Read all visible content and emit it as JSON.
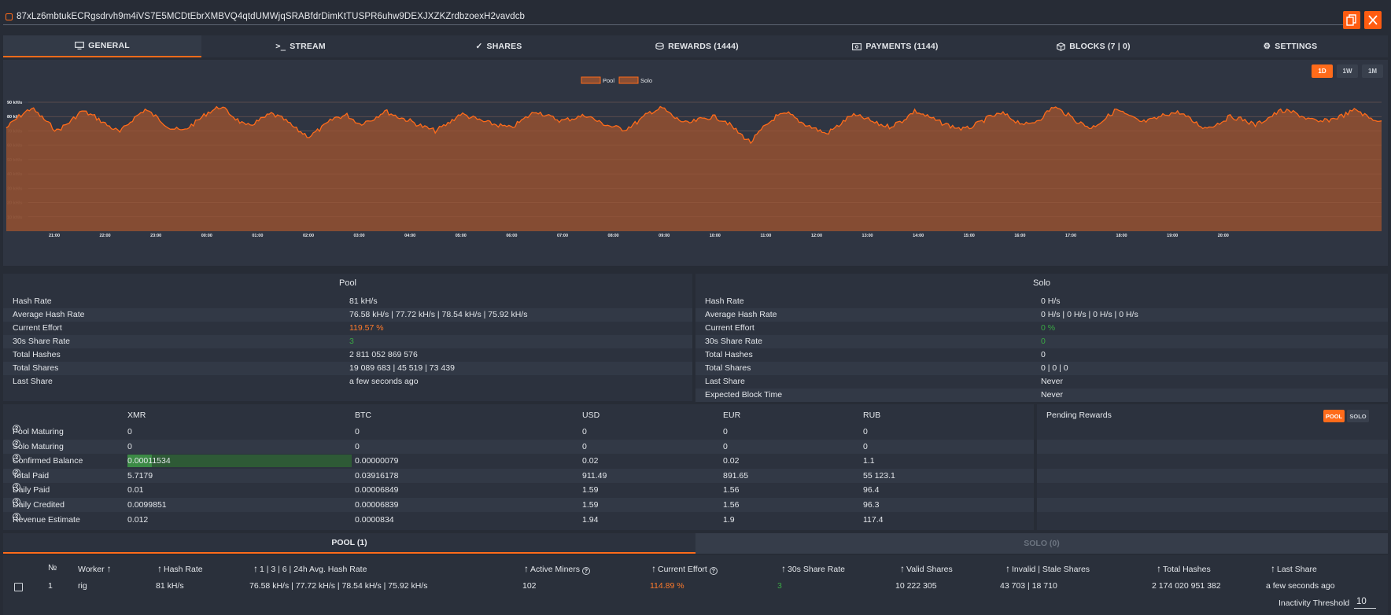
{
  "address": "87xLz6mbtukECRgsdrvh9m4iVS7E5MCDtEbrXMBVQ4qtdUMWjqSRABfdrDimKtTUSPR6uhw9DEXJXZKZrdbzoexH2vavdcb",
  "tabs": {
    "general": "GENERAL",
    "stream": "STREAM",
    "shares": "SHARES",
    "rewards": "REWARDS (1444)",
    "payments": "PAYMENTS (1144)",
    "blocks": "BLOCKS (7 | 0)",
    "settings": "SETTINGS"
  },
  "range_buttons": {
    "d1": "1D",
    "w1": "1W",
    "m1": "1M",
    "active": "1D"
  },
  "colors": {
    "accent": "#ff6b1a",
    "green": "#3aa845",
    "background": "#272c36"
  },
  "chart_data": {
    "type": "area",
    "legend": [
      "Pool",
      "Solo"
    ],
    "legend_position": "top-center",
    "x_tick_labels": [
      "21:00",
      "22:00",
      "23:00",
      "00:00",
      "01:00",
      "02:00",
      "03:00",
      "04:00",
      "05:00",
      "06:00",
      "07:00",
      "08:00",
      "09:00",
      "10:00",
      "11:00",
      "12:00",
      "13:00",
      "14:00",
      "15:00",
      "16:00",
      "17:00",
      "18:00",
      "19:00",
      "20:00"
    ],
    "y_tick_labels": [
      "10 kH/s",
      "20 kH/s",
      "30 kH/s",
      "40 kH/s",
      "50 kH/s",
      "60 kH/s",
      "70 kH/s",
      "80 kH/s",
      "90 kH/s"
    ],
    "ylim": [
      0,
      90
    ],
    "series": [
      {
        "name": "Pool",
        "values": [
          72,
          80,
          86,
          78,
          70,
          76,
          84,
          80,
          74,
          69,
          78,
          85,
          79,
          72,
          70,
          76,
          83,
          87,
          80,
          73,
          77,
          82,
          78,
          71,
          66,
          72,
          79,
          81,
          75,
          78,
          84,
          80,
          77,
          73,
          70,
          75,
          82,
          79,
          76,
          74,
          72,
          78,
          84,
          80,
          77,
          79,
          81,
          76,
          73,
          71,
          76,
          83,
          86,
          79,
          75,
          78,
          80,
          77,
          69,
          62,
          72,
          80,
          82,
          76,
          72,
          68,
          74,
          81,
          79,
          75,
          73,
          77,
          84,
          80,
          76,
          73,
          71,
          75,
          80,
          82,
          77,
          74,
          79,
          87,
          82,
          76,
          72,
          78,
          85,
          80,
          76,
          78,
          82,
          83,
          77,
          72,
          75,
          80,
          78,
          74,
          79,
          84,
          83,
          79,
          76,
          78,
          81,
          85,
          79,
          77
        ]
      },
      {
        "name": "Solo",
        "values": [
          0,
          0,
          0,
          0,
          0,
          0,
          0,
          0,
          0,
          0
        ]
      }
    ],
    "grid": true
  },
  "pool_stats": {
    "title": "Pool",
    "rows": [
      {
        "label": "Hash Rate",
        "value": "81 kH/s"
      },
      {
        "label": "Average Hash Rate",
        "value": "76.58 kH/s | 77.72 kH/s | 78.54 kH/s | 75.92 kH/s"
      },
      {
        "label": "Current Effort",
        "value": "119.57 %"
      },
      {
        "label": "30s Share Rate",
        "value": "3"
      },
      {
        "label": "Total Hashes",
        "value": "2 811 052 869 576"
      },
      {
        "label": "Total Shares",
        "value": "19 089 683 | 45 519 | 73 439"
      },
      {
        "label": "Last Share",
        "value": "a few seconds ago"
      }
    ]
  },
  "solo_stats": {
    "title": "Solo",
    "rows": [
      {
        "label": "Hash Rate",
        "value": "0 H/s"
      },
      {
        "label": "Average Hash Rate",
        "value": "0 H/s | 0 H/s | 0 H/s | 0 H/s"
      },
      {
        "label": "Current Effort",
        "value": "0 %"
      },
      {
        "label": "30s Share Rate",
        "value": "0"
      },
      {
        "label": "Total Hashes",
        "value": "0"
      },
      {
        "label": "Total Shares",
        "value": "0 | 0 | 0"
      },
      {
        "label": "Last Share",
        "value": "Never"
      },
      {
        "label": "Expected Block Time",
        "value": "Never"
      }
    ]
  },
  "rewards": {
    "columns": [
      "XMR",
      "BTC",
      "USD",
      "EUR",
      "RUB"
    ],
    "rows": [
      {
        "label": "Pool Maturing",
        "values": [
          "0",
          "0",
          "0",
          "0",
          "0"
        ]
      },
      {
        "label": "Solo Maturing",
        "values": [
          "0",
          "0",
          "0",
          "0",
          "0"
        ]
      },
      {
        "label": "Confirmed Balance",
        "values": [
          "0.00011534",
          "0.00000079",
          "0.02",
          "0.02",
          "1.1"
        ],
        "progress": 0.22
      },
      {
        "label": "Total Paid",
        "values": [
          "5.7179",
          "0.03916178",
          "911.49",
          "891.65",
          "55 123.1"
        ]
      },
      {
        "label": "Daily Paid",
        "values": [
          "0.01",
          "0.00006849",
          "1.59",
          "1.56",
          "96.4"
        ]
      },
      {
        "label": "Daily Credited",
        "values": [
          "0.0099851",
          "0.00006839",
          "1.59",
          "1.56",
          "96.3"
        ]
      },
      {
        "label": "Revenue Estimate",
        "values": [
          "0.012",
          "0.0000834",
          "1.94",
          "1.9",
          "117.4"
        ]
      }
    ]
  },
  "pending": {
    "title": "Pending Rewards",
    "pool": "POOL",
    "solo": "SOLO"
  },
  "worker_tabs": {
    "pool": "POOL (1)",
    "solo": "SOLO (0)"
  },
  "workers": {
    "headers": {
      "num": "№",
      "worker": "Worker",
      "hashrate": "Hash Rate",
      "avg": "1 | 3 | 6 | 24h Avg. Hash Rate",
      "miners": "Active Miners",
      "effort": "Current Effort",
      "share_rate": "30s Share Rate",
      "valid": "Valid Shares",
      "invalid": "Invalid | Stale Shares",
      "total": "Total Hashes",
      "last": "Last Share"
    },
    "rows": [
      {
        "num": "1",
        "worker": "rig",
        "hashrate": "81 kH/s",
        "avg": "76.58 kH/s | 77.72 kH/s | 78.54 kH/s | 75.92 kH/s",
        "miners": "102",
        "effort": "114.89 %",
        "share_rate": "3",
        "valid": "10 222 305",
        "invalid": "43 703 | 18 710",
        "total": "2 174 020 951 382",
        "last": "a few seconds ago"
      }
    ],
    "inactivity_label": "Inactivity Threshold",
    "inactivity_value": "10"
  }
}
